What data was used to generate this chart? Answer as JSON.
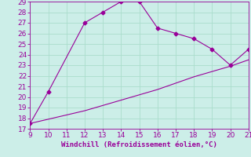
{
  "xlabel": "Windchill (Refroidissement éolien,°C)",
  "xlim": [
    9,
    21
  ],
  "ylim": [
    17,
    29
  ],
  "xticks": [
    9,
    10,
    11,
    12,
    13,
    14,
    15,
    16,
    17,
    18,
    19,
    20,
    21
  ],
  "yticks": [
    17,
    18,
    19,
    20,
    21,
    22,
    23,
    24,
    25,
    26,
    27,
    28,
    29
  ],
  "upper_x": [
    9,
    10,
    12,
    13,
    14,
    15,
    16,
    17,
    18,
    19,
    20,
    21
  ],
  "upper_y": [
    17.5,
    20.5,
    27.0,
    28.0,
    29.0,
    29.0,
    26.5,
    26.0,
    25.5,
    24.5,
    23.0,
    24.5
  ],
  "lower_x": [
    9,
    10,
    11,
    12,
    13,
    14,
    15,
    16,
    17,
    18,
    19,
    20,
    21
  ],
  "lower_y": [
    17.5,
    17.9,
    18.3,
    18.7,
    19.2,
    19.7,
    20.2,
    20.7,
    21.3,
    21.9,
    22.4,
    22.9,
    23.5
  ],
  "line_color": "#990099",
  "marker": "D",
  "marker_size": 2.5,
  "bg_color": "#cceee8",
  "grid_color": "#aaddcc",
  "tick_color": "#990099",
  "label_color": "#990099",
  "font_size": 6.5
}
